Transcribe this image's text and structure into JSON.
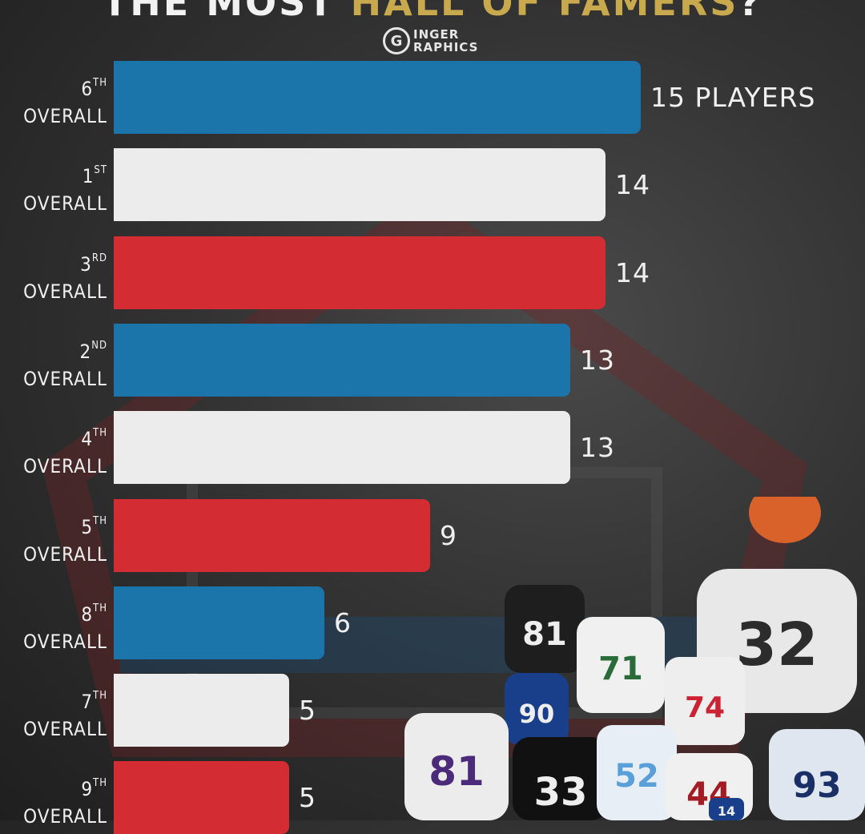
{
  "header": {
    "title_part1": "THE MOST",
    "title_part2": "HALL OF FAMERS",
    "title_part3": "?",
    "logo_line1": "INGER",
    "logo_line2": "RAPHICS",
    "logo_mark": "G"
  },
  "colors": {
    "blue": "#1b75ab",
    "white": "#ececec",
    "red": "#d42c33",
    "gold": "#c9a94e"
  },
  "chart_data": {
    "type": "bar",
    "orientation": "horizontal",
    "unit_label": "PLAYERS",
    "categories": [
      {
        "num": "6",
        "suffix": "TH",
        "word": "OVERALL"
      },
      {
        "num": "1",
        "suffix": "ST",
        "word": "OVERALL"
      },
      {
        "num": "3",
        "suffix": "RD",
        "word": "OVERALL"
      },
      {
        "num": "2",
        "suffix": "ND",
        "word": "OVERALL"
      },
      {
        "num": "4",
        "suffix": "TH",
        "word": "OVERALL"
      },
      {
        "num": "5",
        "suffix": "TH",
        "word": "OVERALL"
      },
      {
        "num": "8",
        "suffix": "TH",
        "word": "OVERALL"
      },
      {
        "num": "7",
        "suffix": "TH",
        "word": "OVERALL"
      },
      {
        "num": "9",
        "suffix": "TH",
        "word": "OVERALL"
      }
    ],
    "values": [
      15,
      14,
      14,
      13,
      13,
      9,
      6,
      5,
      5
    ],
    "bar_colors": [
      "blue",
      "white",
      "red",
      "blue",
      "white",
      "red",
      "blue",
      "white",
      "red"
    ]
  },
  "jerseys": [
    "81",
    "71",
    "90",
    "74",
    "32",
    "81",
    "33",
    "52",
    "44",
    "93",
    "14"
  ]
}
